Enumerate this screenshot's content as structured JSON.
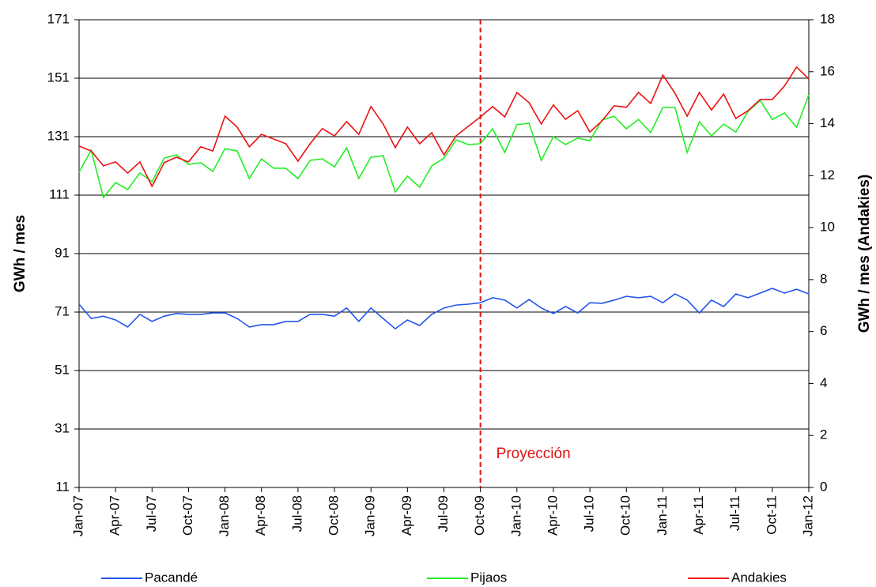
{
  "chart_data": {
    "type": "line",
    "y_label": "GWh / mes",
    "y2_label": "GWh / mes (Andakies)",
    "categories": [
      "Jan-07",
      null,
      null,
      "Apr-07",
      null,
      null,
      "Jul-07",
      null,
      null,
      "Oct-07",
      null,
      null,
      "Jan-08",
      null,
      null,
      "Apr-08",
      null,
      null,
      "Jul-08",
      null,
      null,
      "Oct-08",
      null,
      null,
      "Jan-09",
      null,
      null,
      "Apr-09",
      null,
      null,
      "Jul-09",
      null,
      null,
      "Oct-09",
      null,
      null,
      "Jan-10",
      null,
      null,
      "Apr-10",
      null,
      null,
      "Jul-10",
      null,
      null,
      "Oct-10",
      null,
      null,
      "Jan-11",
      null,
      null,
      "Apr-11",
      null,
      null,
      "Jul-11",
      null,
      null,
      "Oct-11",
      null,
      null,
      "Jan-12"
    ],
    "series": [
      {
        "name": "Pacandé",
        "color": "#2255ee",
        "values": [
          73.7,
          68.8,
          69.6,
          68.3,
          65.9,
          70.2,
          67.8,
          69.6,
          70.5,
          70.2,
          70.2,
          70.7,
          70.7,
          68.8,
          65.9,
          66.7,
          66.7,
          67.8,
          67.8,
          70.2,
          70.2,
          69.6,
          72.4,
          67.8,
          72.4,
          68.8,
          65.3,
          68.3,
          66.4,
          70.2,
          72.4,
          73.4,
          73.7,
          74.2,
          75.9,
          75.1,
          72.4,
          75.3,
          72.4,
          70.5,
          72.9,
          70.7,
          74.2,
          74.0,
          75.1,
          76.4,
          75.9,
          76.4,
          74.2,
          77.2,
          75.1,
          70.7,
          75.1,
          72.9,
          77.2,
          75.9,
          77.5,
          79.1,
          77.5,
          78.8,
          77.2
        ]
      },
      {
        "name": "Pijaos",
        "color": "#22ee22",
        "values": [
          118.8,
          126.4,
          110.2,
          115.3,
          112.9,
          118.6,
          115.6,
          123.7,
          124.8,
          121.5,
          122.1,
          119.1,
          126.9,
          126.1,
          116.7,
          123.4,
          120.2,
          120.2,
          116.7,
          122.9,
          123.4,
          120.7,
          127.2,
          116.7,
          124.0,
          124.5,
          112.1,
          117.5,
          113.7,
          121.0,
          123.7,
          129.9,
          128.3,
          128.6,
          133.7,
          125.6,
          135.1,
          135.6,
          122.9,
          131.0,
          128.3,
          130.5,
          129.6,
          136.7,
          138.0,
          133.7,
          136.9,
          132.4,
          141.0,
          141.0,
          125.6,
          136.1,
          131.3,
          135.3,
          132.6,
          139.6,
          143.4,
          136.9,
          139.1,
          134.2,
          145.3
        ]
      },
      {
        "name": "Andakies",
        "color": "#ee1111",
        "axis": "y2",
        "values": [
          13.14,
          12.95,
          12.38,
          12.53,
          12.1,
          12.53,
          11.59,
          12.5,
          12.71,
          12.53,
          13.11,
          12.95,
          14.29,
          13.87,
          13.11,
          13.59,
          13.41,
          13.23,
          12.56,
          13.23,
          13.81,
          13.53,
          14.08,
          13.59,
          14.66,
          13.99,
          13.08,
          13.87,
          13.23,
          13.65,
          12.8,
          13.53,
          13.9,
          14.26,
          14.66,
          14.26,
          15.2,
          14.81,
          13.99,
          14.72,
          14.17,
          14.5,
          13.68,
          14.11,
          14.69,
          14.63,
          15.2,
          14.78,
          15.87,
          15.17,
          14.29,
          15.2,
          14.53,
          15.14,
          14.2,
          14.5,
          14.93,
          14.93,
          15.45,
          16.18,
          15.72
        ]
      }
    ],
    "ylim": [
      11,
      171
    ],
    "yticks": [
      11,
      31,
      51,
      71,
      91,
      111,
      131,
      151,
      171
    ],
    "y2lim": [
      0,
      18
    ],
    "y2ticks": [
      0,
      2,
      4,
      6,
      8,
      10,
      12,
      14,
      16,
      18
    ],
    "grid": true,
    "legend": "bottom",
    "vline": {
      "x": "Oct-09",
      "label": "Proyección",
      "color": "#dd1111"
    }
  }
}
